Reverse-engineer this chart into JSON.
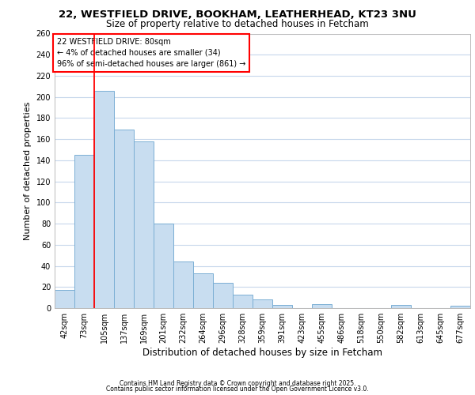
{
  "title_line1": "22, WESTFIELD DRIVE, BOOKHAM, LEATHERHEAD, KT23 3NU",
  "title_line2": "Size of property relative to detached houses in Fetcham",
  "xlabel": "Distribution of detached houses by size in Fetcham",
  "ylabel": "Number of detached properties",
  "bar_color": "#c8ddf0",
  "bar_edge_color": "#7bafd4",
  "categories": [
    "42sqm",
    "73sqm",
    "105sqm",
    "137sqm",
    "169sqm",
    "201sqm",
    "232sqm",
    "264sqm",
    "296sqm",
    "328sqm",
    "359sqm",
    "391sqm",
    "423sqm",
    "455sqm",
    "486sqm",
    "518sqm",
    "550sqm",
    "582sqm",
    "613sqm",
    "645sqm",
    "677sqm"
  ],
  "values": [
    17,
    145,
    206,
    169,
    158,
    80,
    44,
    33,
    24,
    13,
    8,
    3,
    0,
    4,
    0,
    0,
    0,
    3,
    0,
    0,
    2
  ],
  "ylim_max": 260,
  "yticks": [
    0,
    20,
    40,
    60,
    80,
    100,
    120,
    140,
    160,
    180,
    200,
    220,
    240,
    260
  ],
  "redline_x": 1.5,
  "annotation_title": "22 WESTFIELD DRIVE: 80sqm",
  "annotation_line2": "← 4% of detached houses are smaller (34)",
  "annotation_line3": "96% of semi-detached houses are larger (861) →",
  "plot_bg_color": "#ffffff",
  "grid_color": "#c8d8ec",
  "fig_bg_color": "#ffffff",
  "footer_line1": "Contains HM Land Registry data © Crown copyright and database right 2025.",
  "footer_line2": "Contains public sector information licensed under the Open Government Licence v3.0.",
  "title1_fontsize": 9.5,
  "title2_fontsize": 8.5,
  "ylabel_fontsize": 8,
  "xlabel_fontsize": 8.5,
  "tick_fontsize": 7,
  "xtick_fontsize": 7,
  "annot_fontsize": 7,
  "footer_fontsize": 5.5
}
